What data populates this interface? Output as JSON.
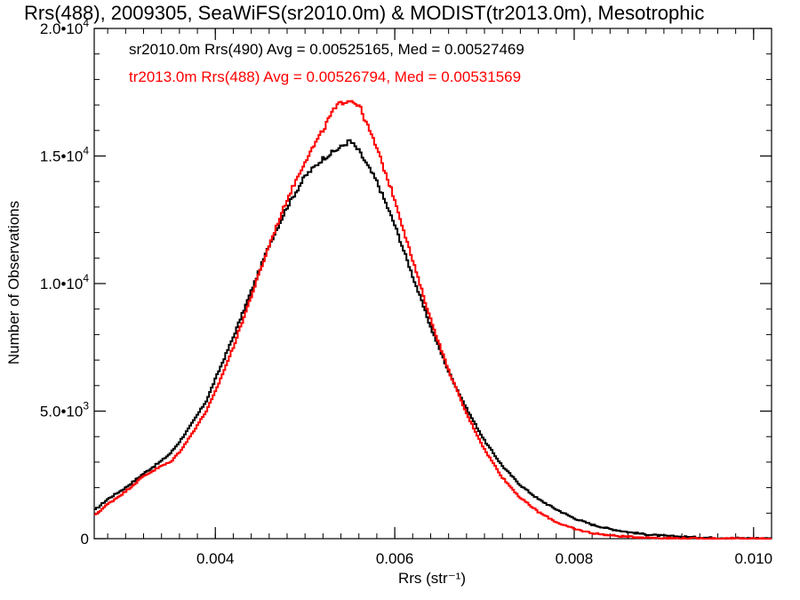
{
  "chart_data": {
    "type": "line",
    "title": "Rrs(488), 2009305, SeaWiFS(sr2010.0m) & MODIST(tr2013.0m), Mesotrophic",
    "xlabel": "Rrs (str⁻¹)",
    "ylabel": "Number of Observations",
    "xlim": [
      0.00265,
      0.0102
    ],
    "ylim": [
      0,
      20000
    ],
    "x_ticks": [
      {
        "value": 0.004,
        "label": "0.004"
      },
      {
        "value": 0.006,
        "label": "0.006"
      },
      {
        "value": 0.008,
        "label": "0.008"
      },
      {
        "value": 0.01,
        "label": "0.010"
      }
    ],
    "y_ticks": [
      {
        "value": 0,
        "mantissa": "0",
        "exponent": ""
      },
      {
        "value": 5000,
        "mantissa": "5.0•10",
        "exponent": "3"
      },
      {
        "value": 10000,
        "mantissa": "1.0•10",
        "exponent": "4"
      },
      {
        "value": 15000,
        "mantissa": "1.5•10",
        "exponent": "4"
      },
      {
        "value": 20000,
        "mantissa": "2.0•10",
        "exponent": "4"
      }
    ],
    "grid": false,
    "legend_position": "top-left",
    "series": [
      {
        "label": "sr2010.0m Rrs(490) Avg = 0.00525165, Med = 0.00527469",
        "color": "#000000",
        "points": [
          [
            0.00265,
            1100
          ],
          [
            0.0028,
            1550
          ],
          [
            0.003,
            2000
          ],
          [
            0.0032,
            2550
          ],
          [
            0.0034,
            3050
          ],
          [
            0.0035,
            3350
          ],
          [
            0.0036,
            3800
          ],
          [
            0.0037,
            4300
          ],
          [
            0.0038,
            4850
          ],
          [
            0.0039,
            5400
          ],
          [
            0.004,
            6250
          ],
          [
            0.0042,
            7900
          ],
          [
            0.0044,
            9700
          ],
          [
            0.0046,
            11500
          ],
          [
            0.0048,
            13000
          ],
          [
            0.005,
            14200
          ],
          [
            0.0052,
            14900
          ],
          [
            0.0054,
            15350
          ],
          [
            0.0055,
            15600
          ],
          [
            0.0056,
            15200
          ],
          [
            0.0058,
            14000
          ],
          [
            0.006,
            12300
          ],
          [
            0.0062,
            10300
          ],
          [
            0.0064,
            8300
          ],
          [
            0.0066,
            6550
          ],
          [
            0.0068,
            5100
          ],
          [
            0.007,
            3850
          ],
          [
            0.0072,
            2850
          ],
          [
            0.0074,
            2100
          ],
          [
            0.0076,
            1550
          ],
          [
            0.0078,
            1150
          ],
          [
            0.008,
            800
          ],
          [
            0.0082,
            550
          ],
          [
            0.0084,
            380
          ],
          [
            0.0086,
            260
          ],
          [
            0.0088,
            170
          ],
          [
            0.009,
            110
          ],
          [
            0.0093,
            60
          ],
          [
            0.0096,
            30
          ],
          [
            0.01,
            15
          ],
          [
            0.0102,
            10
          ]
        ]
      },
      {
        "label": "tr2013.0m Rrs(488) Avg = 0.00526794, Med = 0.00531569",
        "color": "#ff0000",
        "points": [
          [
            0.00265,
            900
          ],
          [
            0.0028,
            1350
          ],
          [
            0.003,
            1850
          ],
          [
            0.0032,
            2450
          ],
          [
            0.0034,
            2850
          ],
          [
            0.0035,
            3000
          ],
          [
            0.0036,
            3400
          ],
          [
            0.0037,
            3900
          ],
          [
            0.0038,
            4450
          ],
          [
            0.0039,
            5000
          ],
          [
            0.004,
            5750
          ],
          [
            0.0042,
            7500
          ],
          [
            0.0044,
            9500
          ],
          [
            0.0046,
            11500
          ],
          [
            0.0048,
            13300
          ],
          [
            0.005,
            14800
          ],
          [
            0.0052,
            16000
          ],
          [
            0.0053,
            16700
          ],
          [
            0.0054,
            17100
          ],
          [
            0.0055,
            17200
          ],
          [
            0.0056,
            17000
          ],
          [
            0.0058,
            15300
          ],
          [
            0.006,
            13300
          ],
          [
            0.0062,
            10900
          ],
          [
            0.0064,
            8600
          ],
          [
            0.0066,
            6600
          ],
          [
            0.0068,
            4900
          ],
          [
            0.007,
            3500
          ],
          [
            0.0072,
            2400
          ],
          [
            0.0074,
            1600
          ],
          [
            0.0076,
            1050
          ],
          [
            0.0078,
            650
          ],
          [
            0.008,
            380
          ],
          [
            0.0082,
            220
          ],
          [
            0.0084,
            130
          ],
          [
            0.0086,
            75
          ],
          [
            0.0088,
            45
          ],
          [
            0.009,
            25
          ],
          [
            0.0093,
            12
          ],
          [
            0.0096,
            6
          ],
          [
            0.01,
            3
          ],
          [
            0.0102,
            2
          ]
        ]
      }
    ]
  }
}
